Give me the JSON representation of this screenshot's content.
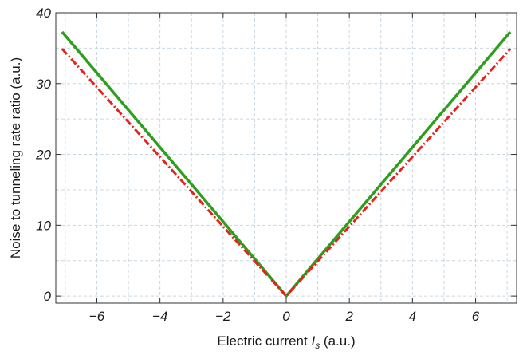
{
  "chart_data": {
    "type": "line",
    "xlabel": {
      "main": "Electric current ",
      "italic": "I",
      "sub": "s",
      "unit": " (a.u.)"
    },
    "ylabel": "Noise to tunneling rate ratio (a.u.)",
    "xlim": [
      -7.3,
      7.3
    ],
    "ylim": [
      -1.0,
      40.0
    ],
    "x_ticks": [
      -6,
      -4,
      -2,
      0,
      2,
      4,
      6
    ],
    "y_ticks": [
      0,
      10,
      20,
      30,
      40
    ],
    "grid": true,
    "series": [
      {
        "style": "solid",
        "color": "#2e9e1f",
        "x": [
          -7.1,
          0,
          7.1
        ],
        "y": [
          37.3,
          0,
          37.3
        ]
      },
      {
        "style": "dashdot",
        "color": "#e8221b",
        "x": [
          -7.1,
          0,
          7.1
        ],
        "y": [
          34.9,
          0,
          34.9
        ]
      }
    ]
  }
}
